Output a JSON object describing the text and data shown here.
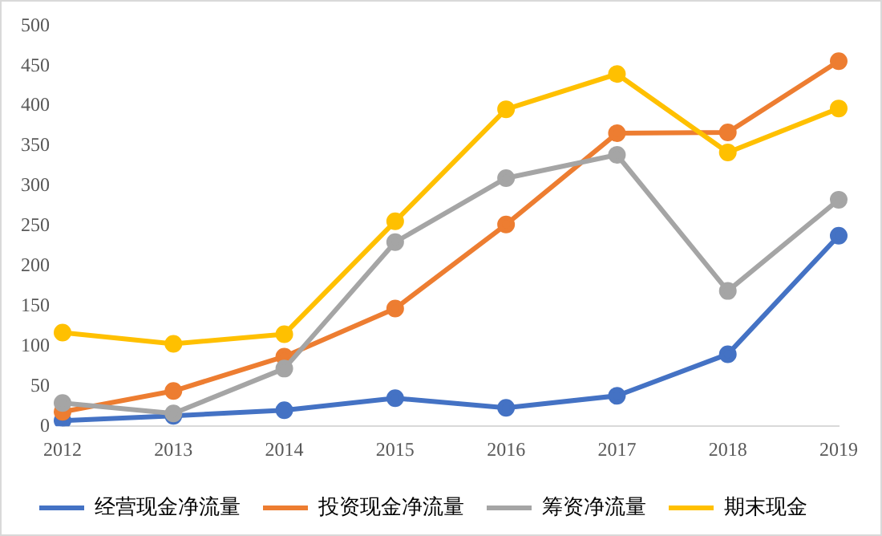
{
  "chart_data": {
    "type": "line",
    "categories": [
      "2012",
      "2013",
      "2014",
      "2015",
      "2016",
      "2017",
      "2018",
      "2019"
    ],
    "series": [
      {
        "name": "经营现金净流量",
        "color": "#4472c4",
        "values": [
          7,
          13,
          20,
          35,
          23,
          38,
          90,
          238
        ]
      },
      {
        "name": "投资现金净流量",
        "color": "#ed7d31",
        "values": [
          18,
          44,
          87,
          147,
          252,
          366,
          367,
          456
        ]
      },
      {
        "name": "筹资净流量",
        "color": "#a5a5a5",
        "values": [
          29,
          16,
          72,
          230,
          310,
          339,
          169,
          283
        ]
      },
      {
        "name": "期末现金",
        "color": "#ffc000",
        "values": [
          117,
          103,
          115,
          256,
          396,
          440,
          342,
          397
        ]
      }
    ],
    "ylim": [
      0,
      500
    ],
    "yticks": [
      0,
      50,
      100,
      150,
      200,
      250,
      300,
      350,
      400,
      450,
      500
    ],
    "grid": false,
    "legend": "bottom",
    "marker": "circle",
    "line_style": "solid"
  }
}
